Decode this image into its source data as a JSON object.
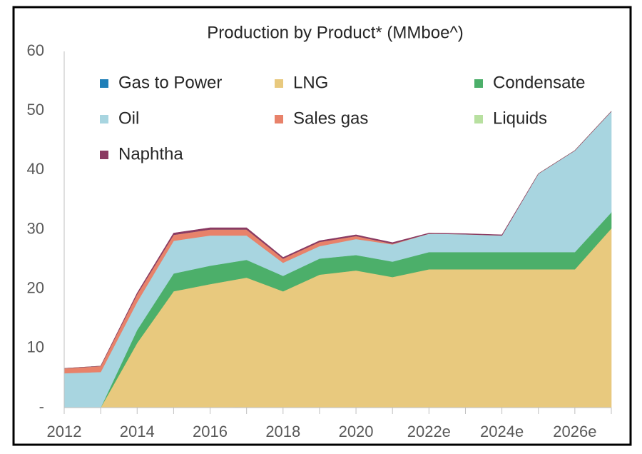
{
  "chart_data": {
    "type": "area",
    "stacked": true,
    "title": "Production by Product* (MMboe^)",
    "categories": [
      "2012",
      null,
      "2014",
      null,
      "2016",
      null,
      "2018",
      null,
      "2020",
      null,
      "2022e",
      null,
      "2024e",
      null,
      "2026e",
      null
    ],
    "series": [
      {
        "name": "Gas to Power",
        "color": "#1f7fb8",
        "values": [
          0,
          0,
          0,
          0,
          0,
          0.1,
          0.1,
          0.1,
          0.1,
          0,
          0,
          0,
          0,
          0,
          0,
          0
        ]
      },
      {
        "name": "LNG",
        "color": "#e8c97e",
        "values": [
          0,
          0,
          10.9,
          19.6,
          20.8,
          21.8,
          19.5,
          22.3,
          23.0,
          22.0,
          23.3,
          23.3,
          23.3,
          23.3,
          23.3,
          30.2
        ]
      },
      {
        "name": "Condensate",
        "color": "#4caf6a",
        "values": [
          0,
          0,
          2.2,
          3.0,
          3.1,
          3.0,
          2.6,
          2.7,
          2.6,
          2.6,
          2.9,
          2.9,
          2.9,
          2.9,
          2.9,
          2.7
        ]
      },
      {
        "name": "Oil",
        "color": "#a8d5e0",
        "values": [
          5.8,
          6.0,
          4.7,
          5.5,
          5.1,
          4.1,
          2.2,
          2.1,
          2.7,
          2.9,
          3.1,
          3.0,
          2.8,
          13.2,
          17.1,
          17.0
        ]
      },
      {
        "name": "Sales gas",
        "color": "#e8826a",
        "values": [
          0.8,
          1.0,
          1.3,
          1.0,
          1.0,
          1.0,
          0.7,
          0.7,
          0.5,
          0.1,
          0,
          0,
          0,
          0,
          0,
          0
        ]
      },
      {
        "name": "Liquids",
        "color": "#b8e0a0",
        "values": [
          0,
          0,
          0,
          0,
          0,
          0,
          0,
          0,
          0,
          0,
          0,
          0,
          0,
          0,
          0,
          0
        ]
      },
      {
        "name": "Naphtha",
        "color": "#8b3a62",
        "values": [
          0,
          0,
          0.2,
          0.3,
          0.3,
          0.3,
          0.2,
          0.2,
          0.2,
          0.2,
          0.1,
          0.1,
          0.1,
          0,
          0,
          0
        ]
      }
    ],
    "ylim": [
      0,
      60
    ],
    "yticks": [
      {
        "value": 0,
        "label": "-"
      },
      10,
      20,
      30,
      40,
      50,
      60
    ],
    "legend": "top"
  }
}
